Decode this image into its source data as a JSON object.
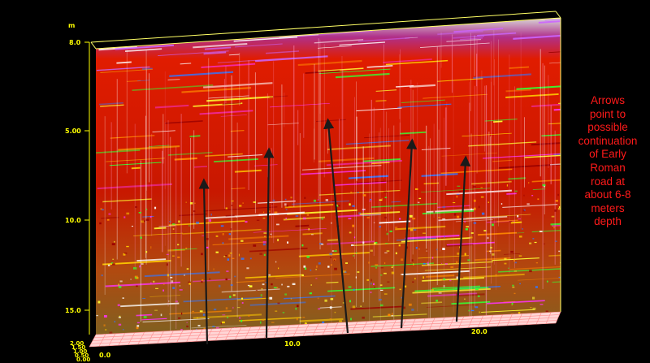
{
  "figure": {
    "depth_unit": "m",
    "depth_ticks": [
      "8.0",
      "5.00",
      "10.0",
      "15.0"
    ],
    "stack_ticks": [
      "2.00",
      "1.50",
      "1.00",
      "0.50",
      "0.00"
    ],
    "distance_ticks": [
      "0.0",
      "10.0",
      "20.0"
    ],
    "annotation_lines": [
      "Arrows",
      "point to",
      "possible",
      "continuation",
      "of Early",
      "Roman",
      "road at",
      "about 6-8",
      "meters",
      "depth"
    ],
    "colors": {
      "background": "#000000",
      "tick_labels": "#ffff00",
      "annotation": "#ff1a1a",
      "radargram_base": "#c81e00",
      "arrows": "#1a1a1a",
      "floor_grid": "#ff8a8a"
    },
    "arrow_count": 5
  }
}
